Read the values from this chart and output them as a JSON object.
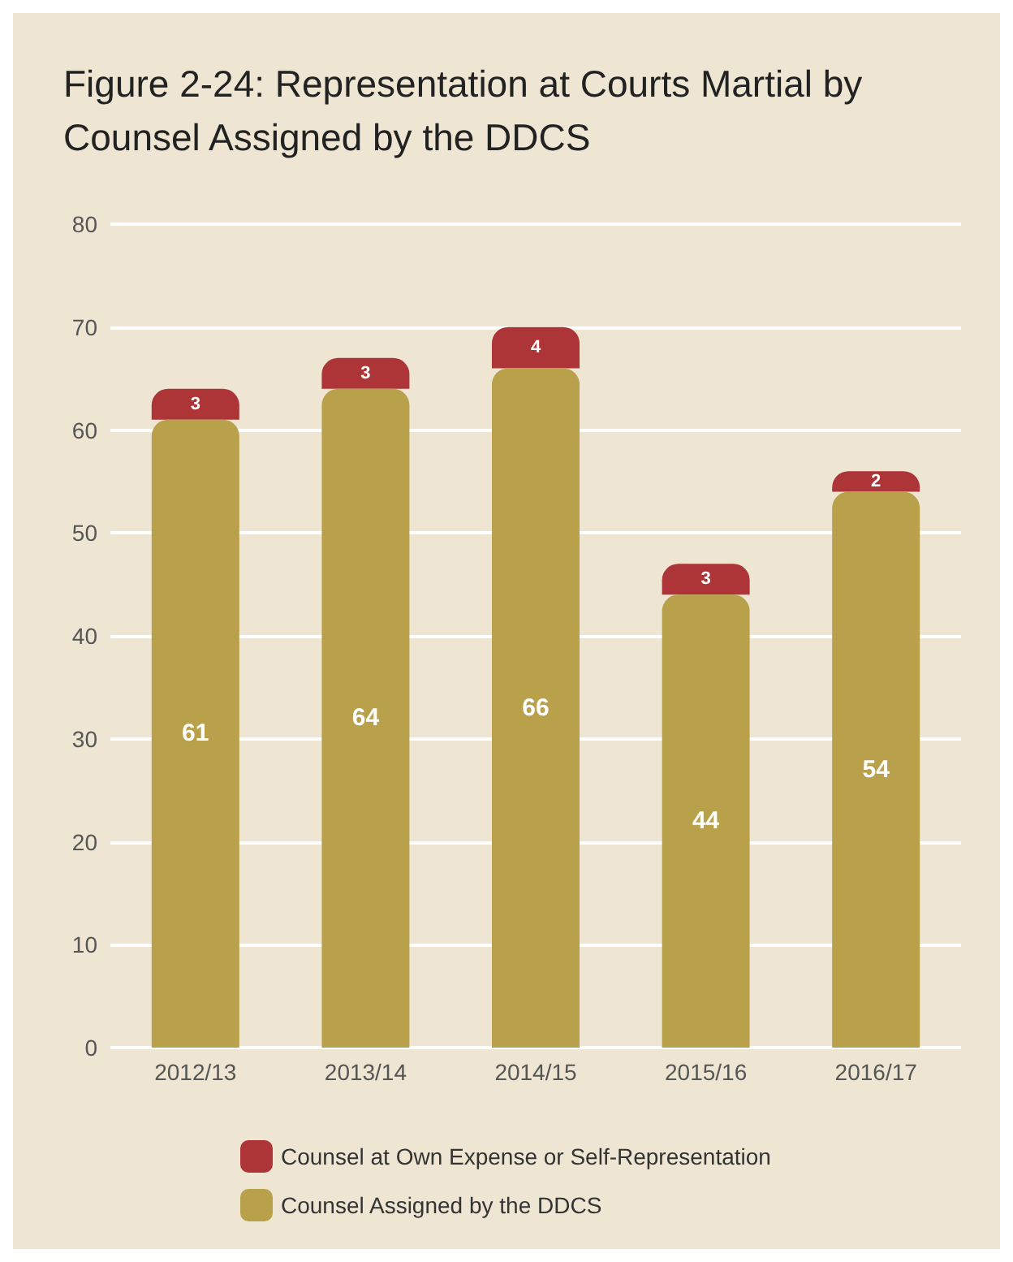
{
  "chart_data": {
    "type": "bar",
    "title": "Figure 2-24: Representation at Courts Martial by Counsel Assigned by the DDCS",
    "categories": [
      "2012/13",
      "2013/14",
      "2014/15",
      "2015/16",
      "2016/17"
    ],
    "stacked": true,
    "data_labels": true,
    "grid": "y",
    "legend": "bottom",
    "ylim": [
      0,
      80
    ],
    "yticks": [
      0,
      10,
      20,
      30,
      40,
      50,
      60,
      70,
      80
    ],
    "series": [
      {
        "name": "Counsel Assigned by the DDCS",
        "color": "#b9a04a",
        "values": [
          61,
          64,
          66,
          44,
          54
        ]
      },
      {
        "name": "Counsel at Own Expense or Self-Representation",
        "color": "#ad3537",
        "values": [
          3,
          3,
          4,
          3,
          2
        ]
      }
    ]
  }
}
